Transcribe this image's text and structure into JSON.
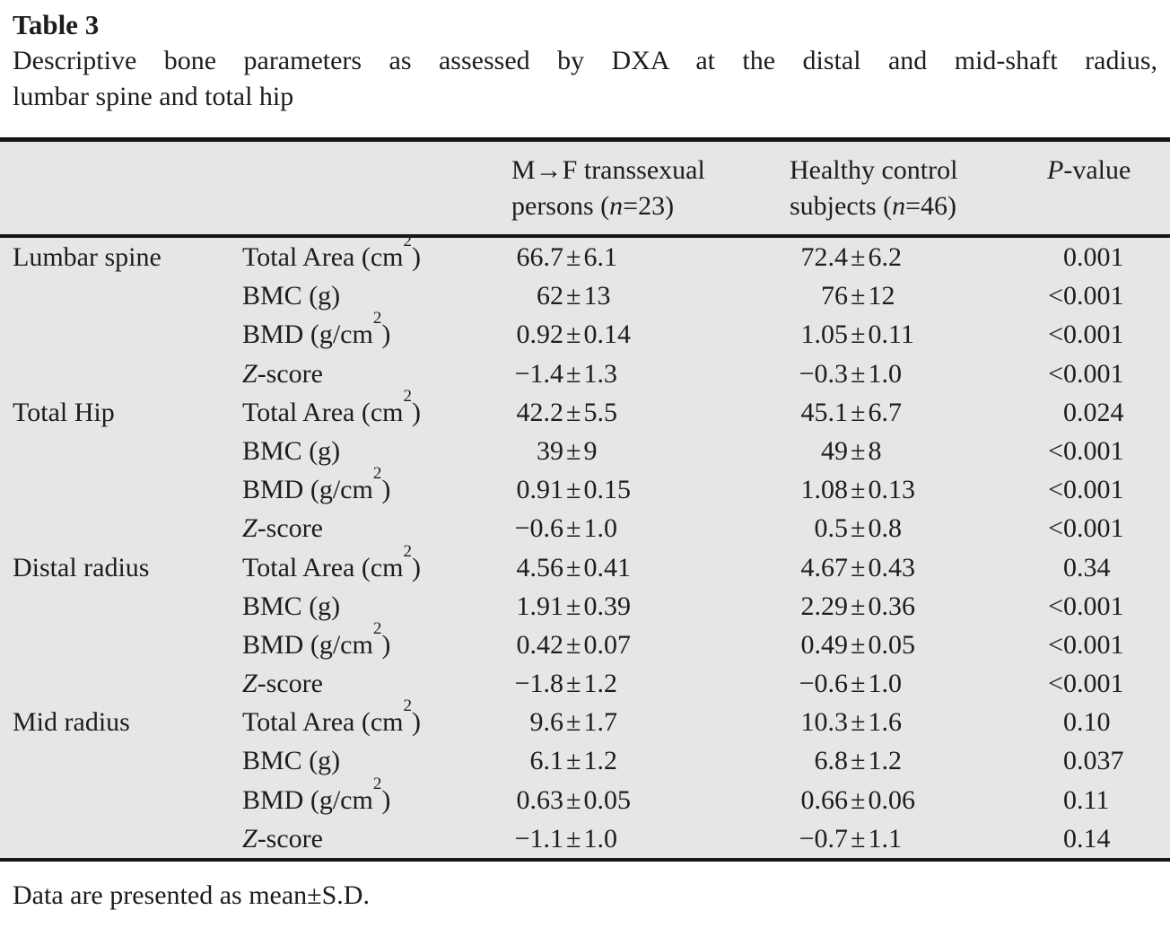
{
  "title": {
    "label": "Table 3",
    "caption_line1": "Descriptive bone parameters as assessed by DXA at the distal and mid-shaft radius,",
    "caption_line2": "lumbar spine and total hip"
  },
  "header": {
    "group1": {
      "line1": "M→F transsexual",
      "line2_pre": "persons (",
      "line2_var": "n",
      "line2_post": "=23)"
    },
    "group2": {
      "line1": "Healthy control",
      "line2_pre": "subjects (",
      "line2_var": "n",
      "line2_post": "=46)"
    },
    "pvalue": {
      "var": "P",
      "rest": "-value"
    }
  },
  "table": {
    "pm_symbol": "±",
    "sections": [
      "Lumbar spine",
      "Total Hip",
      "Distal radius",
      "Mid radius"
    ],
    "rows": [
      {
        "site": "Lumbar spine",
        "param_var": "",
        "param_pre": "Total Area (cm",
        "param_sup": "2",
        "param_post": ")",
        "g1_mean": "66.7",
        "g1_sd": "6.1",
        "g2_mean": "72.4",
        "g2_sd": "6.2",
        "p_prefix": "",
        "p_value": "0.001"
      },
      {
        "site": "",
        "param_var": "",
        "param_pre": "BMC (g)",
        "param_sup": "",
        "param_post": "",
        "g1_mean": "62",
        "g1_sd": "13",
        "g2_mean": "76",
        "g2_sd": "12",
        "p_prefix": "<",
        "p_value": "0.001"
      },
      {
        "site": "",
        "param_var": "",
        "param_pre": "BMD (g/cm",
        "param_sup": "2",
        "param_post": ")",
        "g1_mean": "0.92",
        "g1_sd": "0.14",
        "g2_mean": "1.05",
        "g2_sd": "0.11",
        "p_prefix": "<",
        "p_value": "0.001"
      },
      {
        "site": "",
        "param_var": "Z",
        "param_pre": "-score",
        "param_sup": "",
        "param_post": "",
        "g1_mean": "−1.4",
        "g1_sd": "1.3",
        "g2_mean": "−0.3",
        "g2_sd": "1.0",
        "p_prefix": "<",
        "p_value": "0.001"
      },
      {
        "site": "Total Hip",
        "param_var": "",
        "param_pre": "Total Area (cm",
        "param_sup": "2",
        "param_post": ")",
        "g1_mean": "42.2",
        "g1_sd": "5.5",
        "g2_mean": "45.1",
        "g2_sd": "6.7",
        "p_prefix": "",
        "p_value": "0.024"
      },
      {
        "site": "",
        "param_var": "",
        "param_pre": "BMC (g)",
        "param_sup": "",
        "param_post": "",
        "g1_mean": "39",
        "g1_sd": "9",
        "g2_mean": "49",
        "g2_sd": "8",
        "p_prefix": "<",
        "p_value": "0.001"
      },
      {
        "site": "",
        "param_var": "",
        "param_pre": "BMD (g/cm",
        "param_sup": "2",
        "param_post": ")",
        "g1_mean": "0.91",
        "g1_sd": "0.15",
        "g2_mean": "1.08",
        "g2_sd": "0.13",
        "p_prefix": "<",
        "p_value": "0.001"
      },
      {
        "site": "",
        "param_var": "Z",
        "param_pre": "-score",
        "param_sup": "",
        "param_post": "",
        "g1_mean": "−0.6",
        "g1_sd": "1.0",
        "g2_mean": "0.5",
        "g2_sd": "0.8",
        "p_prefix": "<",
        "p_value": "0.001"
      },
      {
        "site": "Distal radius",
        "param_var": "",
        "param_pre": "Total Area (cm",
        "param_sup": "2",
        "param_post": ")",
        "g1_mean": "4.56",
        "g1_sd": "0.41",
        "g2_mean": "4.67",
        "g2_sd": "0.43",
        "p_prefix": "",
        "p_value": "0.34"
      },
      {
        "site": "",
        "param_var": "",
        "param_pre": "BMC (g)",
        "param_sup": "",
        "param_post": "",
        "g1_mean": "1.91",
        "g1_sd": "0.39",
        "g2_mean": "2.29",
        "g2_sd": "0.36",
        "p_prefix": "<",
        "p_value": "0.001"
      },
      {
        "site": "",
        "param_var": "",
        "param_pre": "BMD (g/cm",
        "param_sup": "2",
        "param_post": ")",
        "g1_mean": "0.42",
        "g1_sd": "0.07",
        "g2_mean": "0.49",
        "g2_sd": "0.05",
        "p_prefix": "<",
        "p_value": "0.001"
      },
      {
        "site": "",
        "param_var": "Z",
        "param_pre": "-score",
        "param_sup": "",
        "param_post": "",
        "g1_mean": "−1.8",
        "g1_sd": "1.2",
        "g2_mean": "−0.6",
        "g2_sd": "1.0",
        "p_prefix": "<",
        "p_value": "0.001"
      },
      {
        "site": "Mid radius",
        "param_var": "",
        "param_pre": "Total Area (cm",
        "param_sup": "2",
        "param_post": ")",
        "g1_mean": "9.6",
        "g1_sd": "1.7",
        "g2_mean": "10.3",
        "g2_sd": "1.6",
        "p_prefix": "",
        "p_value": "0.10"
      },
      {
        "site": "",
        "param_var": "",
        "param_pre": "BMC (g)",
        "param_sup": "",
        "param_post": "",
        "g1_mean": "6.1",
        "g1_sd": "1.2",
        "g2_mean": "6.8",
        "g2_sd": "1.2",
        "p_prefix": "",
        "p_value": "0.037"
      },
      {
        "site": "",
        "param_var": "",
        "param_pre": "BMD (g/cm",
        "param_sup": "2",
        "param_post": ")",
        "g1_mean": "0.63",
        "g1_sd": "0.05",
        "g2_mean": "0.66",
        "g2_sd": "0.06",
        "p_prefix": "",
        "p_value": "0.11"
      },
      {
        "site": "",
        "param_var": "Z",
        "param_pre": "-score",
        "param_sup": "",
        "param_post": "",
        "g1_mean": "−1.1",
        "g1_sd": "1.0",
        "g2_mean": "−0.7",
        "g2_sd": "1.1",
        "p_prefix": "",
        "p_value": "0.14"
      }
    ]
  },
  "footnote": "Data are presented as mean±S.D.",
  "colors": {
    "page_background": "#ffffff",
    "table_background": "#e5e6e7",
    "rule": "#161616",
    "text": "#1d1d1d"
  }
}
